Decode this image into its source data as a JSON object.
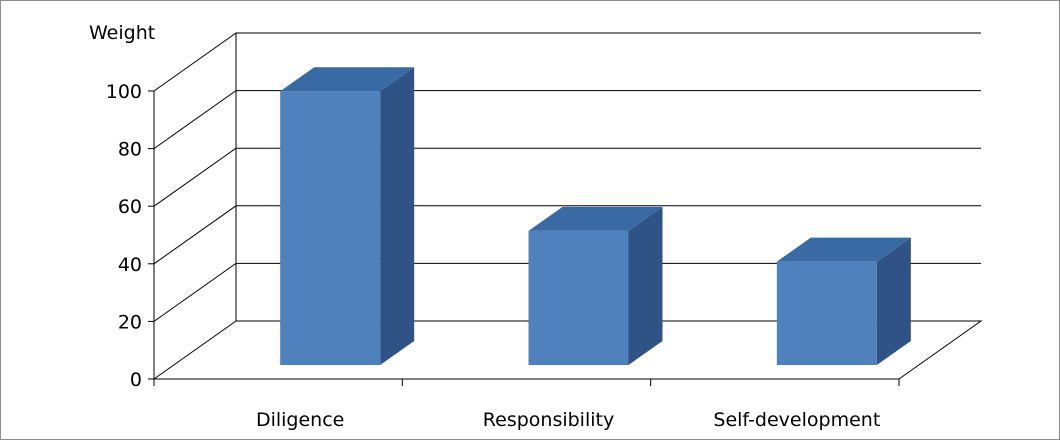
{
  "chart_data": {
    "type": "bar",
    "style": "3d-column",
    "title": "",
    "xlabel": "",
    "ylabel": "Weight",
    "categories": [
      "Diligence",
      "Responsibility",
      "Self-development"
    ],
    "values": [
      98,
      48,
      37
    ],
    "ylim": [
      0,
      100
    ],
    "yticks": [
      0,
      20,
      40,
      60,
      80,
      100
    ],
    "grid": true,
    "legend": "none",
    "colors": {
      "front": "#4f81bd",
      "side": "#2e5384",
      "top": "#3a6aa4",
      "gridline": "#000000"
    }
  }
}
